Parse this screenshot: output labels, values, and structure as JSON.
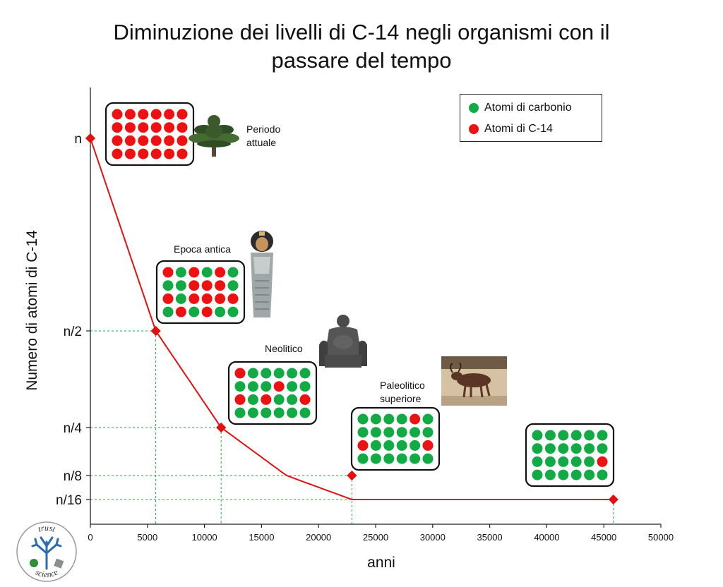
{
  "chart_data": {
    "type": "line",
    "title_line1": "Diminuzione dei livelli di C-14 negli organismi con il",
    "title_line2": "passare del tempo",
    "xlabel": "anni",
    "ylabel": "Numero di atomi di C-14",
    "xlim": [
      0,
      50000
    ],
    "x_ticks": [
      0,
      5000,
      10000,
      15000,
      20000,
      25000,
      30000,
      35000,
      40000,
      45000,
      50000
    ],
    "y_ticks": [
      {
        "label": "n",
        "value": 1
      },
      {
        "label": "n/2",
        "value": 0.5
      },
      {
        "label": "n/4",
        "value": 0.25
      },
      {
        "label": "n/8",
        "value": 0.125
      },
      {
        "label": "n/16",
        "value": 0.0625
      }
    ],
    "points": [
      {
        "x": 0,
        "y": 1
      },
      {
        "x": 5730,
        "y": 0.5
      },
      {
        "x": 11460,
        "y": 0.25
      },
      {
        "x": 22920,
        "y": 0.125
      },
      {
        "x": 45840,
        "y": 0.0625
      }
    ],
    "legend": [
      {
        "label": "Atomi di carbonio",
        "color": "#11aa44"
      },
      {
        "label": "Atomi di C-14",
        "color": "#ee1111"
      }
    ],
    "legend_placement": "top-right",
    "curve_color": "#e41010",
    "guide_color": "#22aa44"
  },
  "annotations": [
    {
      "line1": "Periodo",
      "line2": "attuale",
      "icon": "tree-icon"
    },
    {
      "line1": "Epoca antica",
      "line2": "",
      "icon": "sarcophagus-icon"
    },
    {
      "line1": "Neolitico",
      "line2": "",
      "icon": "statue-icon"
    },
    {
      "line1": "Paleolitico",
      "line2": "superiore",
      "icon": "cave-painting-icon"
    }
  ],
  "atom_grids": [
    {
      "rows": [
        "rrrrrr",
        "rrrrrr",
        "rrrrrr",
        "rrrrrr"
      ]
    },
    {
      "rows": [
        "rgrgrg",
        "ggrrrg",
        "rgrrrr",
        "grgrgg"
      ]
    },
    {
      "rows": [
        "rggggg",
        "gggrgg",
        "rgrggr",
        "gggggg"
      ]
    },
    {
      "rows": [
        "ggggrg",
        "gggggg",
        "rggggr",
        "gggggg"
      ]
    },
    {
      "rows": [
        "gggggg",
        "gggggg",
        "gggggr",
        "gggggg"
      ]
    }
  ],
  "logo": {
    "top_text": "trust",
    "bottom_text": "science",
    "icon": "tree-logo-icon"
  }
}
